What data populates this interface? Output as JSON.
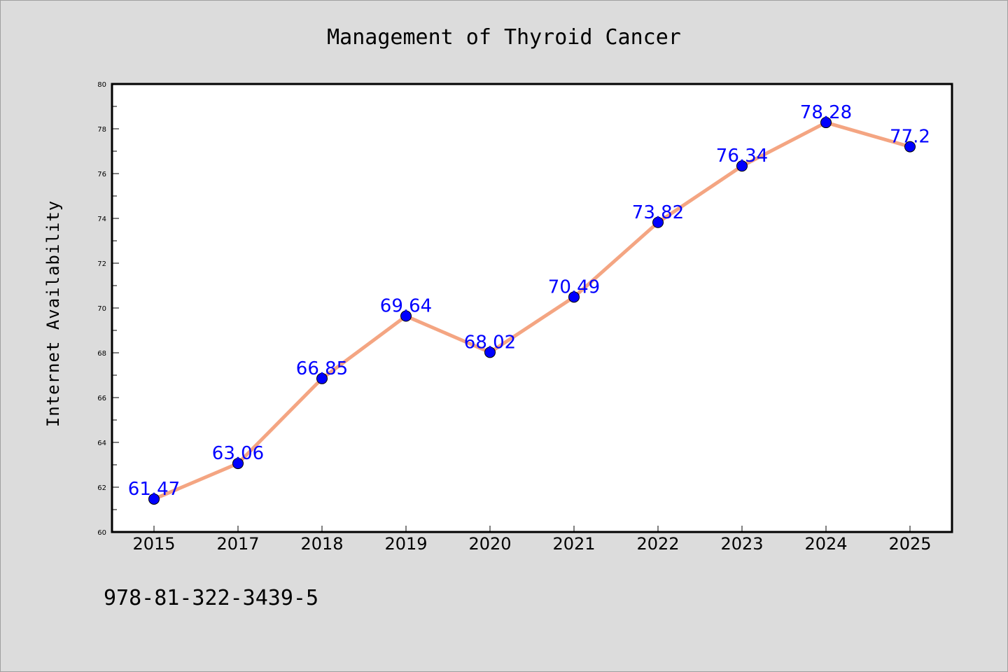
{
  "chart_data": {
    "type": "line",
    "title": "Management of Thyroid Cancer",
    "xlabel": "",
    "ylabel": "Internet Availability",
    "categories": [
      "2015",
      "2017",
      "2018",
      "2019",
      "2020",
      "2021",
      "2022",
      "2023",
      "2024",
      "2025"
    ],
    "series": [
      {
        "values": [
          61.47,
          63.06,
          66.85,
          69.64,
          68.02,
          70.49,
          73.82,
          76.34,
          78.28,
          77.2
        ],
        "data_labels": [
          "61.47",
          "63.06",
          "66.85",
          "69.64",
          "68.02",
          "70.49",
          "73.82",
          "76.34",
          "78.28",
          "77.2"
        ]
      }
    ],
    "ylim": [
      60,
      80
    ],
    "yticks": [
      "60",
      "62",
      "64",
      "66",
      "68",
      "70",
      "72",
      "74",
      "76",
      "78",
      "80"
    ],
    "grid": false,
    "legend": "none",
    "colors": {
      "background": "#dcdcdc",
      "plot_background": "#ffffff",
      "line": "#f4a582",
      "marker": "#0000ff",
      "data_label": "#0000ff"
    }
  },
  "footer": {
    "text": "978-81-322-3439-5"
  }
}
